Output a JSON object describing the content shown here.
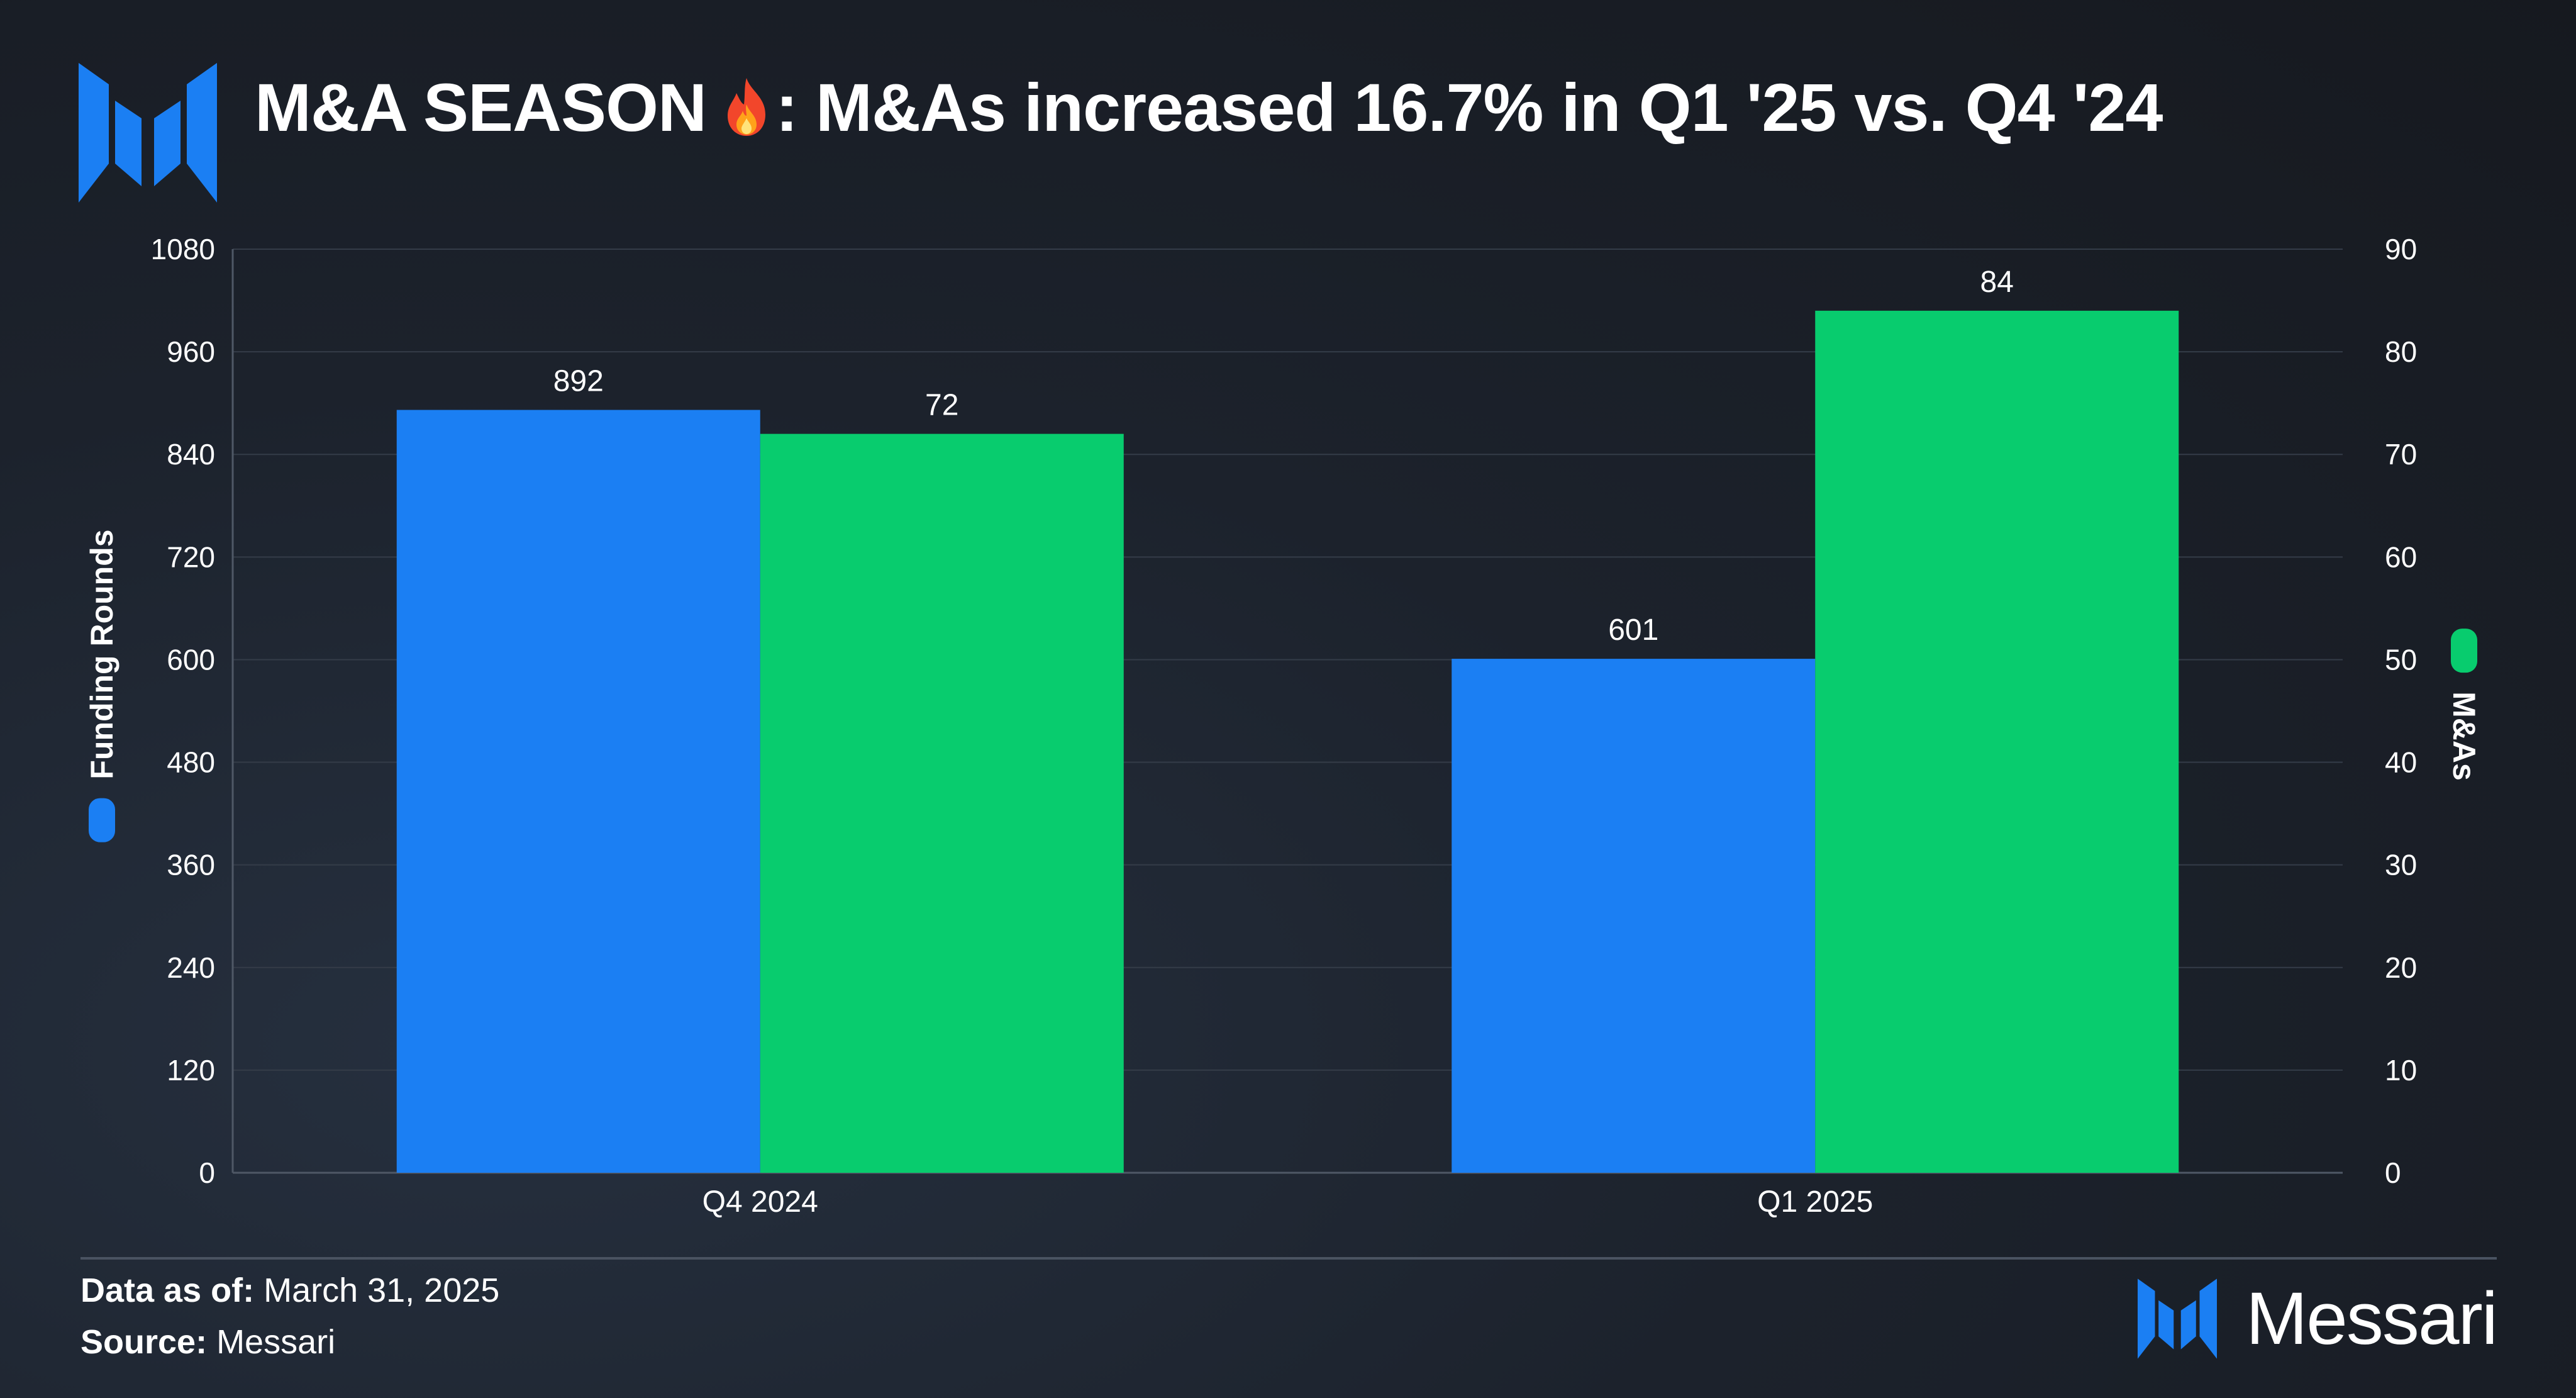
{
  "header": {
    "title_prefix": "M&A SEASON",
    "title_suffix": ": M&As increased 16.7% in Q1 '25 vs. Q4 '24",
    "title_icon": "fire-icon"
  },
  "colors": {
    "funding": "#1b7ff3",
    "mas": "#08cc6e",
    "brand": "#1b7ff3"
  },
  "chart_data": {
    "type": "bar",
    "categories": [
      "Q4 2024",
      "Q1 2025"
    ],
    "series": [
      {
        "name": "Funding Rounds",
        "axis": "left",
        "values": [
          892,
          601
        ]
      },
      {
        "name": "M&As",
        "axis": "right",
        "values": [
          72,
          84
        ]
      }
    ],
    "left_axis": {
      "label": "Funding Rounds",
      "ylim": [
        0,
        1080
      ],
      "ticks": [
        "0",
        "120",
        "240",
        "360",
        "480",
        "600",
        "720",
        "840",
        "960",
        "1080"
      ]
    },
    "right_axis": {
      "label": "M&As",
      "ylim": [
        0,
        90
      ],
      "ticks": [
        "0",
        "10",
        "20",
        "30",
        "40",
        "50",
        "60",
        "70",
        "80",
        "90"
      ]
    },
    "grid": true,
    "legend": "on axis titles"
  },
  "footer": {
    "date_label": "Data as of:",
    "date_value": " March 31, 2025",
    "source_label": "Source:",
    "source_value": " Messari",
    "brand_name": "Messari"
  }
}
